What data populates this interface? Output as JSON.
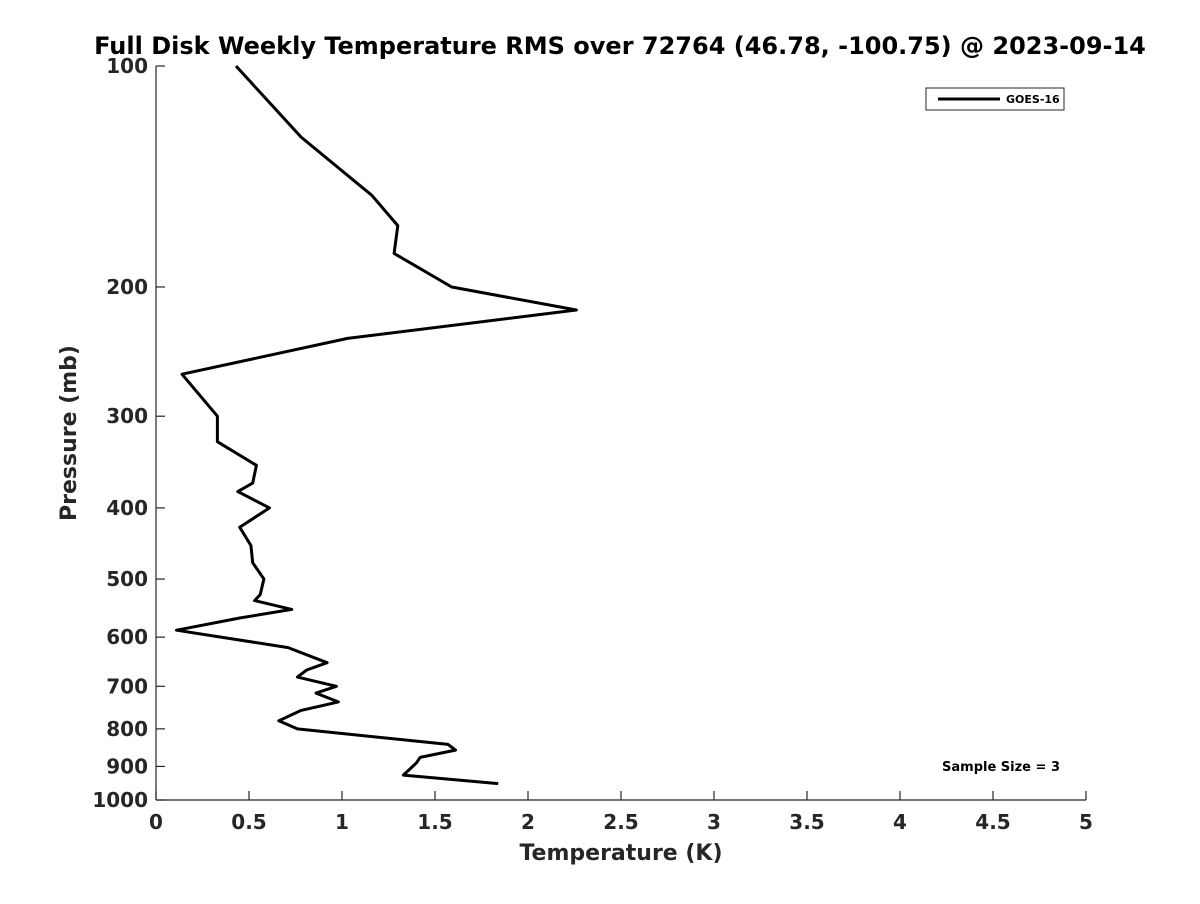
{
  "chart_data": {
    "type": "line",
    "title": "Full Disk Weekly Temperature RMS over 72764 (46.78, -100.75) @ 2023-09-14",
    "xlabel": "Temperature (K)",
    "ylabel": "Pressure (mb)",
    "xlim": [
      0,
      5
    ],
    "ylim": [
      100,
      1000
    ],
    "y_scale": "log",
    "y_reversed": true,
    "x_ticks": [
      "0",
      "0.5",
      "1",
      "1.5",
      "2",
      "2.5",
      "3",
      "3.5",
      "4",
      "4.5",
      "5"
    ],
    "x_tick_values": [
      0,
      0.5,
      1,
      1.5,
      2,
      2.5,
      3,
      3.5,
      4,
      4.5,
      5
    ],
    "y_ticks": [
      "100",
      "200",
      "300",
      "400",
      "500",
      "600",
      "700",
      "800",
      "900",
      "1000"
    ],
    "y_tick_values": [
      100,
      200,
      300,
      400,
      500,
      600,
      700,
      800,
      900,
      1000
    ],
    "grid": false,
    "legend_position": "top-right",
    "series": [
      {
        "name": "GOES-16",
        "color": "#000000",
        "points": [
          {
            "x": 0.43,
            "y": 100
          },
          {
            "x": 0.78,
            "y": 125
          },
          {
            "x": 1.16,
            "y": 150
          },
          {
            "x": 1.3,
            "y": 165
          },
          {
            "x": 1.28,
            "y": 180
          },
          {
            "x": 1.59,
            "y": 200
          },
          {
            "x": 2.26,
            "y": 215
          },
          {
            "x": 1.03,
            "y": 235
          },
          {
            "x": 0.14,
            "y": 263
          },
          {
            "x": 0.33,
            "y": 300
          },
          {
            "x": 0.33,
            "y": 325
          },
          {
            "x": 0.54,
            "y": 350
          },
          {
            "x": 0.52,
            "y": 370
          },
          {
            "x": 0.44,
            "y": 380
          },
          {
            "x": 0.61,
            "y": 400
          },
          {
            "x": 0.45,
            "y": 425
          },
          {
            "x": 0.51,
            "y": 450
          },
          {
            "x": 0.52,
            "y": 475
          },
          {
            "x": 0.58,
            "y": 500
          },
          {
            "x": 0.56,
            "y": 525
          },
          {
            "x": 0.53,
            "y": 535
          },
          {
            "x": 0.73,
            "y": 550
          },
          {
            "x": 0.45,
            "y": 565
          },
          {
            "x": 0.11,
            "y": 587
          },
          {
            "x": 0.71,
            "y": 620
          },
          {
            "x": 0.92,
            "y": 650
          },
          {
            "x": 0.81,
            "y": 665
          },
          {
            "x": 0.76,
            "y": 680
          },
          {
            "x": 0.97,
            "y": 700
          },
          {
            "x": 0.86,
            "y": 715
          },
          {
            "x": 0.98,
            "y": 735
          },
          {
            "x": 0.78,
            "y": 755
          },
          {
            "x": 0.66,
            "y": 780
          },
          {
            "x": 0.76,
            "y": 800
          },
          {
            "x": 1.57,
            "y": 840
          },
          {
            "x": 1.61,
            "y": 855
          },
          {
            "x": 1.42,
            "y": 875
          },
          {
            "x": 1.4,
            "y": 890
          },
          {
            "x": 1.33,
            "y": 925
          },
          {
            "x": 1.84,
            "y": 950
          }
        ]
      }
    ],
    "annotations": [
      "Sample Size = 3"
    ]
  }
}
